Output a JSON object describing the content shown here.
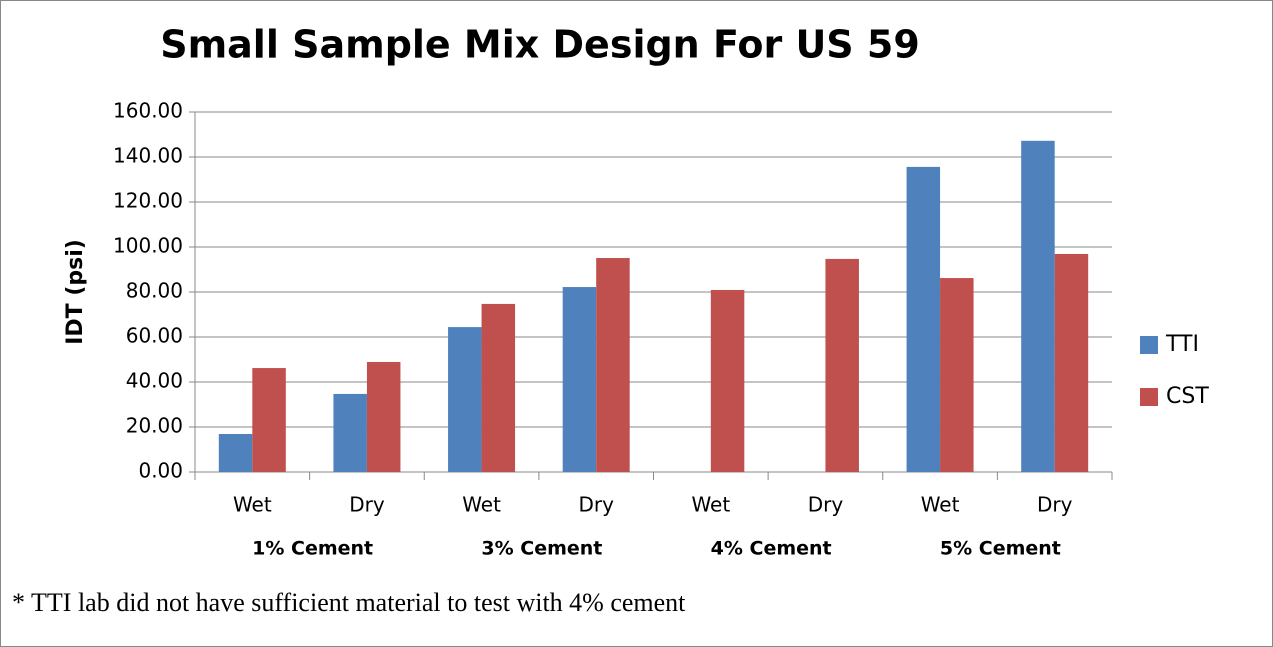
{
  "chart_data": {
    "type": "bar",
    "title": "Small Sample Mix Design For US 59",
    "y_label": "IDT (psi)",
    "categories": [
      "Wet",
      "Dry",
      "Wet",
      "Dry",
      "Wet",
      "Dry",
      "Wet",
      "Dry"
    ],
    "group_labels": [
      "1% Cement",
      "3% Cement",
      "4% Cement",
      "5% Cement"
    ],
    "series": [
      {
        "name": "TTI",
        "color": "#4f81bd",
        "values": [
          16.9,
          34.7,
          64.4,
          82.2,
          null,
          null,
          135.6,
          147.2
        ]
      },
      {
        "name": "CST",
        "color": "#c0504d",
        "values": [
          46.2,
          48.9,
          74.7,
          95.1,
          80.9,
          94.7,
          86.2,
          96.9
        ]
      }
    ],
    "ylim": [
      0,
      160
    ],
    "yticks": [
      {
        "value": 0,
        "label": "0.00"
      },
      {
        "value": 20,
        "label": "20.00"
      },
      {
        "value": 40,
        "label": "40.00"
      },
      {
        "value": 60,
        "label": "60.00"
      },
      {
        "value": 80,
        "label": "80.00"
      },
      {
        "value": 100,
        "label": "100.00"
      },
      {
        "value": 120,
        "label": "120.00"
      },
      {
        "value": 140,
        "label": "140.00"
      },
      {
        "value": 160,
        "label": "160.00"
      }
    ],
    "grid": true,
    "legend": "right",
    "footnote": "* TTI lab did not have sufficient material to test with 4% cement"
  }
}
